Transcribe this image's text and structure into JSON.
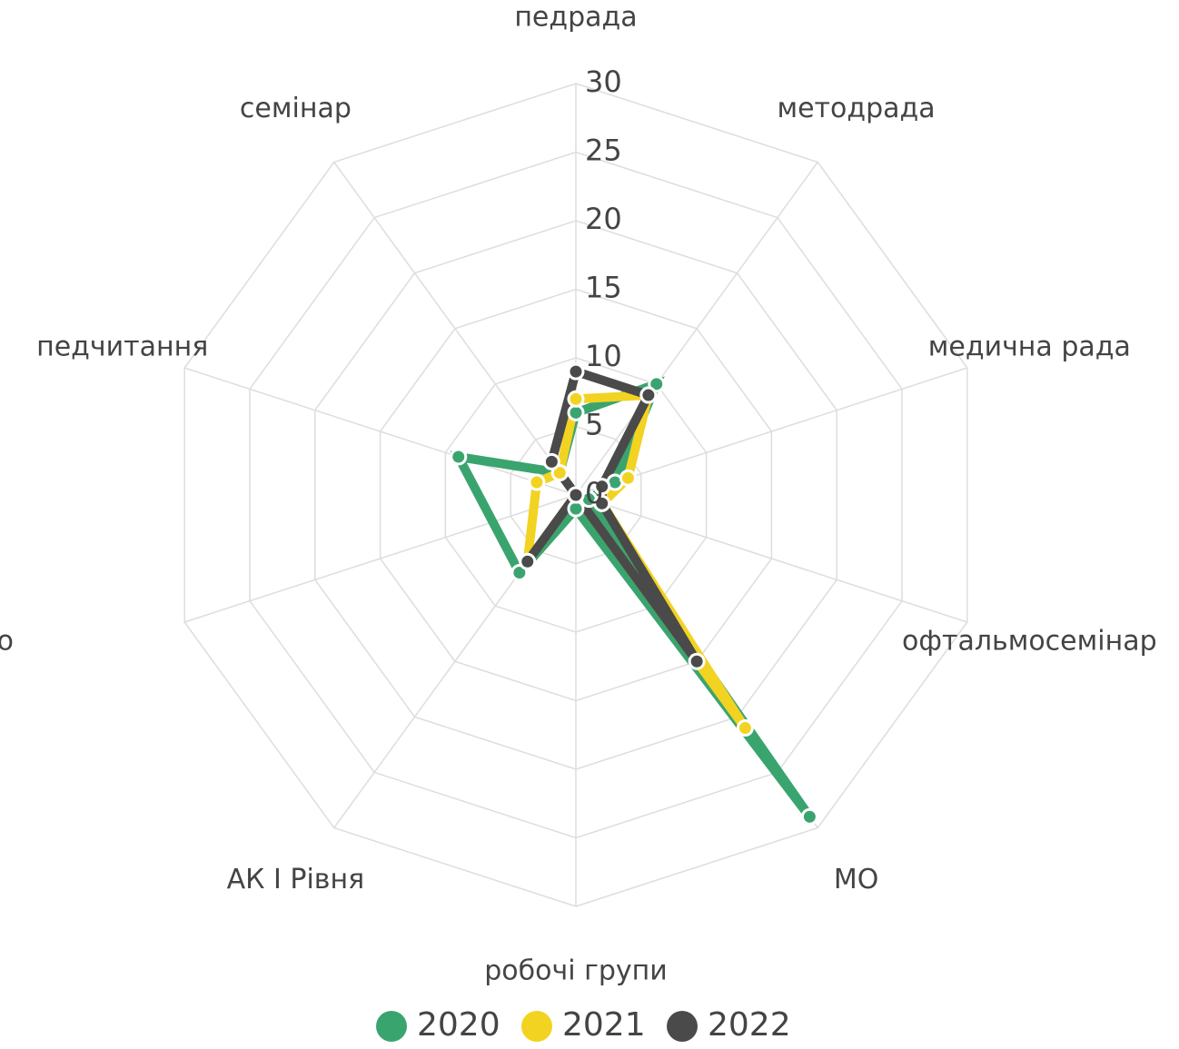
{
  "chart_data": {
    "type": "radar",
    "categories": [
      "педрада",
      "методрада",
      "медична рада",
      "офтальмосемінар",
      "МО",
      "робочі групи",
      "АК І Рівня",
      null,
      "педчитання",
      "семінар"
    ],
    "clipped_label": "о",
    "series": [
      {
        "name": "2020",
        "color": "#3aa46f",
        "values": [
          6,
          10,
          3,
          1,
          29,
          1,
          7,
          null,
          9,
          2
        ]
      },
      {
        "name": "2021",
        "color": "#f2d321",
        "values": [
          7,
          9,
          4,
          2,
          21,
          0,
          6,
          null,
          3,
          2
        ]
      },
      {
        "name": "2022",
        "color": "#4a4a4a",
        "values": [
          9,
          9,
          2,
          2,
          15,
          0,
          6,
          null,
          0,
          3
        ]
      }
    ],
    "rlim": [
      0,
      30
    ],
    "rticks": [
      0,
      5,
      10,
      15,
      20,
      25,
      30
    ],
    "grid": true,
    "legend": "bottom"
  }
}
